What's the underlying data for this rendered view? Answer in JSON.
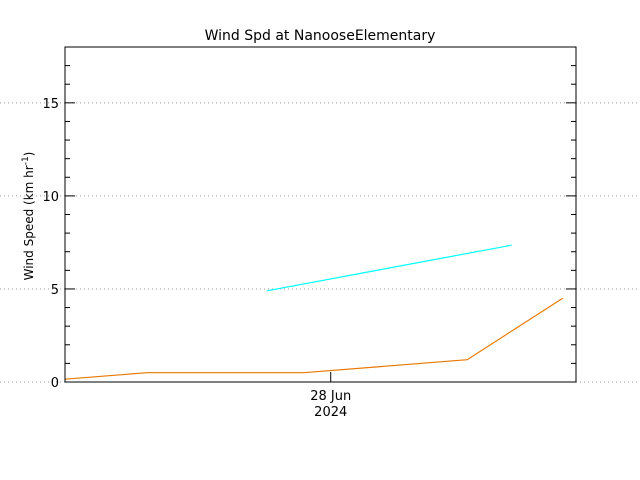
{
  "chart_data": {
    "type": "line",
    "title": "Wind Spd at NanooseElementary",
    "ylabel": {
      "main": "Wind Speed (km hr",
      "superscript": "-1",
      "close": ")"
    },
    "xlabel": "",
    "x_tick_labels": [
      {
        "line1": "28 Jun",
        "line2": "2024",
        "x": 0.52
      }
    ],
    "xlim": [
      0,
      1
    ],
    "ylim": [
      0,
      18
    ],
    "y_ticks": [
      0,
      5,
      10,
      15
    ],
    "y_gridlines": [
      0,
      5,
      10,
      15
    ],
    "grid": "horizontal dotted, extending beyond plot frame",
    "series": [
      {
        "color": "#00ffff",
        "points": [
          {
            "x": 0.395,
            "y": 4.9
          },
          {
            "x": 0.874,
            "y": 7.35
          }
        ]
      },
      {
        "color": "#e87800",
        "points": [
          {
            "x": 0.0,
            "y": 0.15
          },
          {
            "x": 0.16,
            "y": 0.5
          },
          {
            "x": 0.467,
            "y": 0.5
          },
          {
            "x": 0.787,
            "y": 1.2
          },
          {
            "x": 0.974,
            "y": 4.5
          }
        ]
      }
    ]
  }
}
